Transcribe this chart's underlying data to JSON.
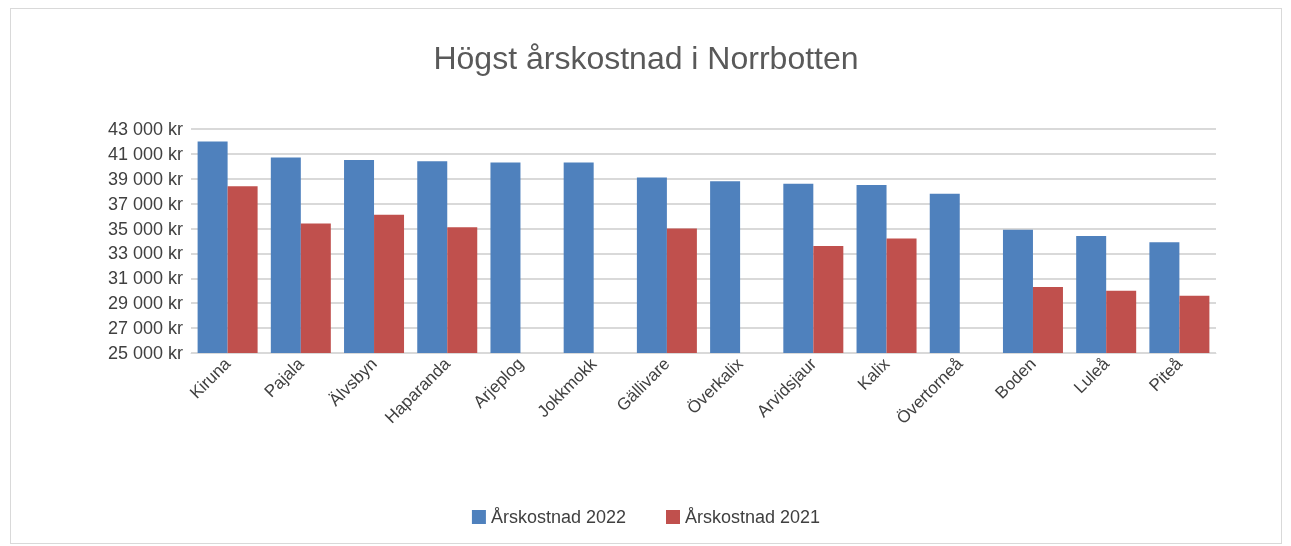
{
  "chart_data": {
    "type": "bar",
    "title": "Högst årskostnad i Norrbotten",
    "categories": [
      "Kiruna",
      "Pajala",
      "Älvsbyn",
      "Haparanda",
      "Arjeplog",
      "Jokkmokk",
      "Gällivare",
      "Överkalix",
      "Arvidsjaur",
      "Kalix",
      "Övertorneå",
      "Boden",
      "Luleå",
      "Piteå"
    ],
    "series": [
      {
        "name": "Årskostnad 2022",
        "color": "#4f81bd",
        "values": [
          42000,
          40700,
          40500,
          40400,
          40300,
          40300,
          39100,
          38800,
          38600,
          38500,
          37800,
          34900,
          34400,
          33900
        ]
      },
      {
        "name": "Årskostnad 2021",
        "color": "#c0504d",
        "values": [
          38400,
          35400,
          36100,
          35100,
          null,
          null,
          35000,
          null,
          33600,
          34200,
          null,
          30300,
          30000,
          29600
        ]
      }
    ],
    "ylim": [
      25000,
      43000
    ],
    "yticks": [
      {
        "value": 25000,
        "label": "25 000 kr"
      },
      {
        "value": 27000,
        "label": "27 000 kr"
      },
      {
        "value": 29000,
        "label": "29 000 kr"
      },
      {
        "value": 31000,
        "label": "31 000 kr"
      },
      {
        "value": 33000,
        "label": "33 000 kr"
      },
      {
        "value": 35000,
        "label": "35 000 kr"
      },
      {
        "value": 37000,
        "label": "37 000 kr"
      },
      {
        "value": 39000,
        "label": "39 000 kr"
      },
      {
        "value": 41000,
        "label": "41 000 kr"
      },
      {
        "value": 43000,
        "label": "43 000 kr"
      }
    ],
    "grid": "y",
    "legend": "bottom"
  }
}
